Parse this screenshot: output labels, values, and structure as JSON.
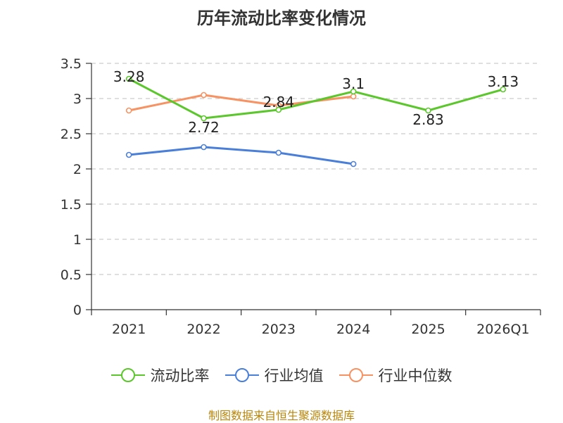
{
  "chart_data": {
    "type": "line",
    "title": "历年流动比率变化情况",
    "categories": [
      "2021",
      "2022",
      "2023",
      "2024",
      "2025",
      "2026Q1"
    ],
    "ylim": [
      0,
      3.5
    ],
    "yticks": [
      "0",
      "0.5",
      "1",
      "1.5",
      "2",
      "2.5",
      "3",
      "3.5"
    ],
    "grid": true,
    "legend_position": "bottom",
    "series": [
      {
        "name": "流动比率",
        "color": "#5cc72c",
        "values": [
          3.28,
          2.72,
          2.84,
          3.1,
          2.83,
          3.13
        ],
        "labels": [
          "3.28",
          "2.72",
          "2.84",
          "3.1",
          "2.83",
          "3.13"
        ]
      },
      {
        "name": "行业均值",
        "color": "#4a7fd9",
        "values": [
          2.2,
          2.31,
          2.23,
          2.07,
          null,
          null
        ]
      },
      {
        "name": "行业中位数",
        "color": "#f79262",
        "values": [
          2.83,
          3.05,
          2.9,
          3.03,
          null,
          null
        ]
      }
    ]
  },
  "source": "制图数据来自恒生聚源数据库"
}
